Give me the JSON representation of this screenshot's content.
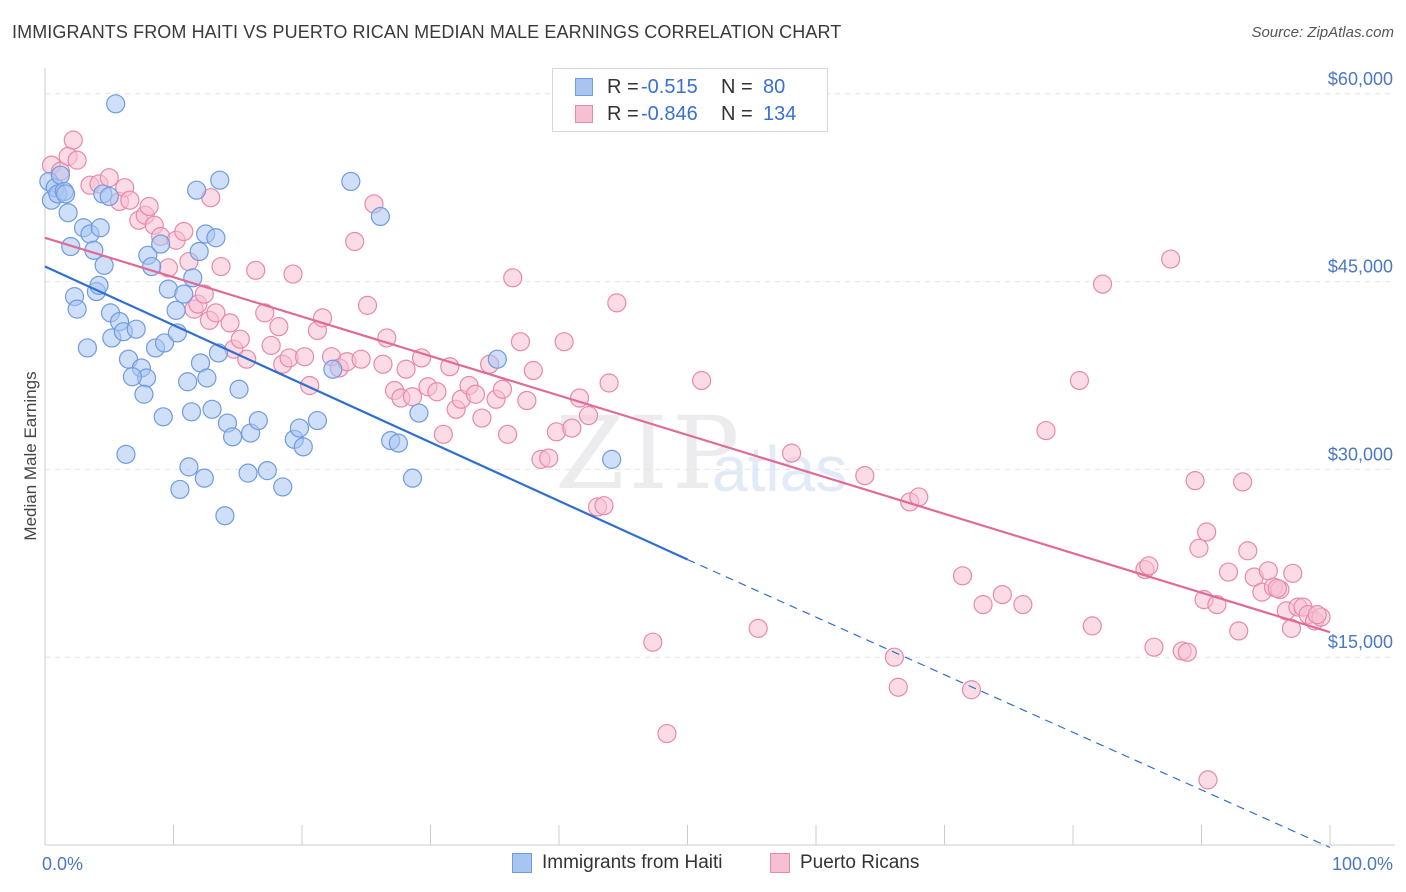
{
  "title": "IMMIGRANTS FROM HAITI VS PUERTO RICAN MEDIAN MALE EARNINGS CORRELATION CHART",
  "source": "Source: ZipAtlas.com",
  "watermark": {
    "zip": "ZIP",
    "atlas": "atlas"
  },
  "legend": {
    "rows": [
      {
        "r_label": "R =",
        "r_value": "-0.515",
        "n_label": "N =",
        "n_value": "80",
        "color": "#a8c4f0",
        "border": "#6f9be0"
      },
      {
        "r_label": "R =",
        "r_value": "-0.846",
        "n_label": "N =",
        "n_value": "134",
        "color": "#f7c0d2",
        "border": "#e889aa"
      }
    ]
  },
  "bottom_legend": [
    {
      "label": "Immigrants from Haiti",
      "color": "#a8c4f0",
      "border": "#6f9be0"
    },
    {
      "label": "Puerto Ricans",
      "color": "#f7c0d2",
      "border": "#e889aa"
    }
  ],
  "chart_data": {
    "type": "scatter",
    "ylabel": "Median Male Earnings",
    "x_tick_labels": [
      "0.0%",
      "100.0%"
    ],
    "y_tick_labels": [
      "$15,000",
      "$30,000",
      "$45,000",
      "$60,000"
    ],
    "y_ticks": [
      15000,
      30000,
      45000,
      60000
    ],
    "xlim": [
      0,
      100
    ],
    "ylim": [
      0,
      61500
    ],
    "grid": true,
    "series": [
      {
        "name": "Immigrants from Haiti",
        "color": "#a8c4f0",
        "stroke": "#6f9be0",
        "line_color": "#2f6fd0",
        "trend": {
          "x0": 0,
          "y0": 46200,
          "x1": 50,
          "y1": 22800,
          "dash_to_x": 100,
          "dash_to_y": -200
        },
        "points": [
          [
            0.3,
            53000
          ],
          [
            0.5,
            51500
          ],
          [
            0.8,
            52500
          ],
          [
            1.0,
            52000
          ],
          [
            1.2,
            53500
          ],
          [
            1.5,
            52200
          ],
          [
            1.8,
            50500
          ],
          [
            1.6,
            52000
          ],
          [
            2.0,
            47800
          ],
          [
            2.3,
            43800
          ],
          [
            2.5,
            42800
          ],
          [
            4.5,
            52000
          ],
          [
            5.0,
            51800
          ],
          [
            5.5,
            59200
          ],
          [
            3.0,
            49300
          ],
          [
            3.5,
            48800
          ],
          [
            4.0,
            44200
          ],
          [
            3.8,
            47500
          ],
          [
            4.2,
            44700
          ],
          [
            4.6,
            46300
          ],
          [
            4.3,
            49300
          ],
          [
            5.1,
            42500
          ],
          [
            3.3,
            39700
          ],
          [
            5.2,
            40500
          ],
          [
            5.8,
            41800
          ],
          [
            6.1,
            41000
          ],
          [
            6.5,
            38800
          ],
          [
            7.1,
            41200
          ],
          [
            7.5,
            38100
          ],
          [
            7.9,
            37300
          ],
          [
            7.7,
            36000
          ],
          [
            6.3,
            31200
          ],
          [
            6.8,
            37400
          ],
          [
            8.6,
            39700
          ],
          [
            9.3,
            40100
          ],
          [
            10.2,
            42700
          ],
          [
            9.6,
            44400
          ],
          [
            10.3,
            40900
          ],
          [
            11.1,
            37000
          ],
          [
            11.4,
            34600
          ],
          [
            12.1,
            38500
          ],
          [
            12.6,
            37300
          ],
          [
            13.0,
            34800
          ],
          [
            13.5,
            39300
          ],
          [
            14.2,
            33700
          ],
          [
            14.6,
            32600
          ],
          [
            15.1,
            36400
          ],
          [
            15.8,
            29700
          ],
          [
            16.0,
            32900
          ],
          [
            16.6,
            33900
          ],
          [
            17.3,
            29900
          ],
          [
            18.5,
            28600
          ],
          [
            19.4,
            32400
          ],
          [
            19.8,
            33300
          ],
          [
            20.1,
            31800
          ],
          [
            21.2,
            33900
          ],
          [
            22.4,
            38000
          ],
          [
            23.8,
            53000
          ],
          [
            26.1,
            50200
          ],
          [
            26.9,
            32300
          ],
          [
            27.5,
            32100
          ],
          [
            28.6,
            29300
          ],
          [
            29.1,
            34500
          ],
          [
            35.2,
            38800
          ],
          [
            44.1,
            30800
          ],
          [
            8.0,
            47100
          ],
          [
            8.3,
            46200
          ],
          [
            9.0,
            48000
          ],
          [
            10.8,
            44000
          ],
          [
            11.5,
            45300
          ],
          [
            12.0,
            47400
          ],
          [
            12.5,
            48800
          ],
          [
            13.3,
            48500
          ],
          [
            11.8,
            52300
          ],
          [
            13.6,
            53100
          ],
          [
            11.2,
            30200
          ],
          [
            12.4,
            29300
          ],
          [
            14.0,
            26300
          ],
          [
            9.2,
            34200
          ],
          [
            10.5,
            28400
          ]
        ]
      },
      {
        "name": "Puerto Ricans",
        "color": "#f7c0d2",
        "stroke": "#e889aa",
        "line_color": "#e06b97",
        "trend": {
          "x0": 0,
          "y0": 48500,
          "x1": 100,
          "y1": 17000
        },
        "points": [
          [
            0.5,
            54300
          ],
          [
            1.2,
            53800
          ],
          [
            1.8,
            55000
          ],
          [
            2.2,
            56300
          ],
          [
            2.5,
            54700
          ],
          [
            3.5,
            52700
          ],
          [
            4.2,
            52800
          ],
          [
            5.0,
            53300
          ],
          [
            5.8,
            51400
          ],
          [
            6.2,
            52500
          ],
          [
            6.6,
            51500
          ],
          [
            7.3,
            49900
          ],
          [
            7.8,
            50300
          ],
          [
            8.1,
            51000
          ],
          [
            8.5,
            49500
          ],
          [
            9.0,
            48600
          ],
          [
            9.6,
            46100
          ],
          [
            10.2,
            48300
          ],
          [
            10.8,
            49000
          ],
          [
            11.2,
            46600
          ],
          [
            11.6,
            42800
          ],
          [
            11.9,
            43200
          ],
          [
            12.4,
            44000
          ],
          [
            12.8,
            41900
          ],
          [
            13.3,
            42500
          ],
          [
            12.9,
            51700
          ],
          [
            13.7,
            46200
          ],
          [
            14.4,
            41700
          ],
          [
            14.7,
            39600
          ],
          [
            15.2,
            40400
          ],
          [
            15.7,
            38800
          ],
          [
            16.4,
            45900
          ],
          [
            17.1,
            42500
          ],
          [
            17.6,
            39900
          ],
          [
            18.2,
            41400
          ],
          [
            18.5,
            38400
          ],
          [
            19.0,
            38900
          ],
          [
            19.3,
            45600
          ],
          [
            20.2,
            39000
          ],
          [
            20.6,
            36700
          ],
          [
            21.2,
            41100
          ],
          [
            21.6,
            42100
          ],
          [
            22.3,
            39000
          ],
          [
            22.9,
            38100
          ],
          [
            23.5,
            38600
          ],
          [
            24.1,
            48200
          ],
          [
            24.6,
            38800
          ],
          [
            25.1,
            43100
          ],
          [
            25.6,
            51200
          ],
          [
            26.3,
            38400
          ],
          [
            26.6,
            40500
          ],
          [
            27.2,
            36300
          ],
          [
            27.7,
            35700
          ],
          [
            28.1,
            38000
          ],
          [
            28.6,
            35800
          ],
          [
            29.3,
            38900
          ],
          [
            29.8,
            36600
          ],
          [
            30.5,
            36200
          ],
          [
            31.0,
            32800
          ],
          [
            31.5,
            38200
          ],
          [
            32.0,
            34800
          ],
          [
            32.4,
            35600
          ],
          [
            33.0,
            36700
          ],
          [
            33.5,
            36000
          ],
          [
            34.0,
            34100
          ],
          [
            34.6,
            38400
          ],
          [
            35.1,
            35600
          ],
          [
            35.6,
            36400
          ],
          [
            36.0,
            32800
          ],
          [
            36.4,
            45300
          ],
          [
            37.0,
            40200
          ],
          [
            37.5,
            35500
          ],
          [
            38.0,
            37900
          ],
          [
            38.6,
            30800
          ],
          [
            39.2,
            30900
          ],
          [
            39.8,
            33000
          ],
          [
            40.4,
            40200
          ],
          [
            41.0,
            33300
          ],
          [
            41.6,
            35700
          ],
          [
            42.3,
            34300
          ],
          [
            43.0,
            27000
          ],
          [
            43.5,
            27100
          ],
          [
            43.9,
            36900
          ],
          [
            44.5,
            43300
          ],
          [
            47.3,
            16200
          ],
          [
            48.4,
            8900
          ],
          [
            51.1,
            37100
          ],
          [
            55.5,
            17300
          ],
          [
            58.1,
            31300
          ],
          [
            63.8,
            29500
          ],
          [
            66.1,
            15000
          ],
          [
            66.4,
            12600
          ],
          [
            67.3,
            27400
          ],
          [
            68.0,
            27800
          ],
          [
            71.4,
            21500
          ],
          [
            72.1,
            12400
          ],
          [
            73.0,
            19200
          ],
          [
            74.5,
            20000
          ],
          [
            76.1,
            19200
          ],
          [
            77.9,
            33100
          ],
          [
            80.5,
            37100
          ],
          [
            81.5,
            17500
          ],
          [
            82.3,
            44800
          ],
          [
            85.6,
            22000
          ],
          [
            85.9,
            22300
          ],
          [
            86.3,
            15800
          ],
          [
            87.6,
            46800
          ],
          [
            88.5,
            15500
          ],
          [
            88.9,
            15400
          ],
          [
            89.5,
            29100
          ],
          [
            89.8,
            23700
          ],
          [
            90.2,
            19600
          ],
          [
            90.4,
            25000
          ],
          [
            91.2,
            19200
          ],
          [
            92.1,
            21800
          ],
          [
            92.9,
            17100
          ],
          [
            93.2,
            29000
          ],
          [
            93.6,
            23500
          ],
          [
            94.1,
            21400
          ],
          [
            94.7,
            20200
          ],
          [
            95.2,
            21900
          ],
          [
            95.6,
            20600
          ],
          [
            96.1,
            20400
          ],
          [
            96.6,
            18700
          ],
          [
            97.1,
            21700
          ],
          [
            97.5,
            19000
          ],
          [
            97.9,
            19000
          ],
          [
            98.3,
            18400
          ],
          [
            98.8,
            17900
          ],
          [
            99.3,
            18200
          ],
          [
            90.5,
            5200
          ],
          [
            95.9,
            20500
          ],
          [
            97.0,
            17300
          ],
          [
            99.0,
            18400
          ]
        ]
      }
    ]
  }
}
